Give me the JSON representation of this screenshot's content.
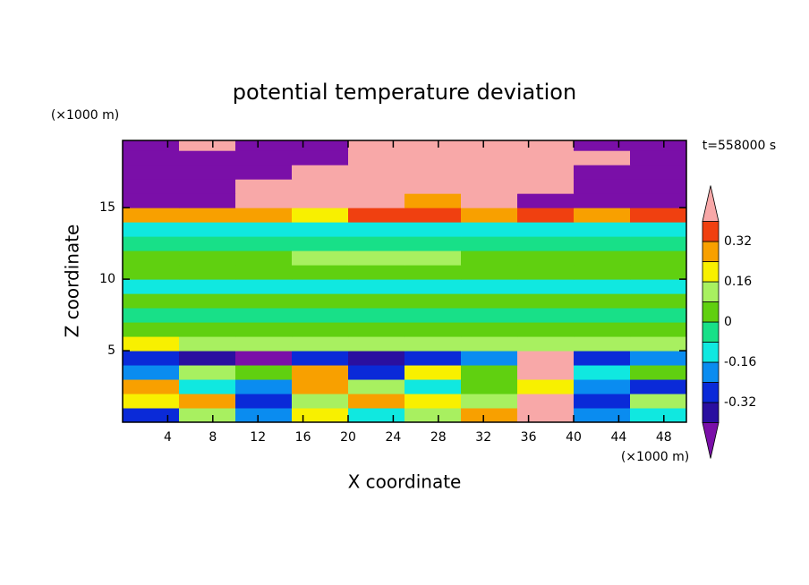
{
  "chart_data": {
    "type": "contour",
    "title": "potential temperature deviation",
    "x_label": "X coordinate",
    "y_label": "Z coordinate",
    "x_unit": "(×1000 m)",
    "y_unit": "(×1000 m)",
    "annotation": "t=558000 s",
    "xlim": [
      0,
      50
    ],
    "ylim": [
      0,
      19.7
    ],
    "xticks": [
      4,
      8,
      12,
      16,
      20,
      24,
      28,
      32,
      36,
      40,
      44,
      48
    ],
    "yticks": [
      5,
      10,
      15
    ],
    "x": [
      2.5,
      7.5,
      12.5,
      17.5,
      22.5,
      27.5,
      32.5,
      37.5,
      42.5,
      47.5
    ],
    "y": [
      0.5,
      1.5,
      2.5,
      3.5,
      4.5,
      5.5,
      6.5,
      7.5,
      8.5,
      9.5,
      10.5,
      11.5,
      12.5,
      13.5,
      14.5,
      15.5,
      16.5,
      17.5,
      18.5,
      19.5
    ],
    "z": [
      [
        -0.3,
        0.1,
        -0.2,
        0.2,
        -0.1,
        0.1,
        0.3,
        0.5,
        -0.2,
        -0.1
      ],
      [
        0.2,
        0.3,
        -0.3,
        0.1,
        0.3,
        0.2,
        0.1,
        0.5,
        -0.3,
        0.1
      ],
      [
        0.3,
        -0.1,
        -0.2,
        0.25,
        0.1,
        -0.1,
        0.0,
        0.2,
        -0.2,
        -0.3
      ],
      [
        -0.2,
        0.1,
        0.0,
        0.3,
        -0.3,
        0.2,
        0.0,
        0.5,
        -0.1,
        0.0
      ],
      [
        -0.3,
        -0.35,
        -0.45,
        -0.3,
        -0.4,
        -0.3,
        -0.2,
        0.5,
        -0.3,
        -0.2
      ],
      [
        0.2,
        0.1,
        0.1,
        0.1,
        0.15,
        0.1,
        0.1,
        0.15,
        0.1,
        0.1
      ],
      [
        0.04,
        0.04,
        0.04,
        0.04,
        0.04,
        0.04,
        0.04,
        0.04,
        0.04,
        0.04
      ],
      [
        -0.04,
        -0.04,
        -0.04,
        -0.04,
        -0.04,
        -0.04,
        -0.04,
        -0.04,
        -0.04,
        -0.04
      ],
      [
        0.04,
        0.04,
        0.04,
        0.04,
        0.04,
        0.04,
        0.04,
        0.04,
        0.04,
        0.04
      ],
      [
        -0.12,
        -0.1,
        -0.1,
        -0.1,
        -0.1,
        -0.1,
        -0.1,
        -0.1,
        -0.1,
        -0.12
      ],
      [
        0.04,
        0.04,
        0.04,
        0.04,
        0.04,
        0.04,
        0.04,
        0.04,
        0.04,
        0.04
      ],
      [
        0.04,
        0.04,
        0.04,
        0.12,
        0.12,
        0.12,
        0.04,
        0.04,
        0.04,
        0.04
      ],
      [
        -0.04,
        -0.04,
        -0.04,
        -0.04,
        -0.04,
        -0.04,
        -0.04,
        -0.04,
        -0.04,
        -0.04
      ],
      [
        -0.12,
        -0.12,
        -0.12,
        -0.12,
        -0.12,
        -0.12,
        -0.12,
        -0.12,
        -0.12,
        -0.12
      ],
      [
        0.3,
        0.3,
        0.3,
        0.2,
        0.36,
        0.36,
        0.3,
        0.36,
        0.3,
        0.36
      ],
      [
        -0.5,
        -0.5,
        0.5,
        0.5,
        0.5,
        0.3,
        0.5,
        -0.5,
        -0.5,
        -0.5
      ],
      [
        -0.5,
        -0.5,
        0.5,
        0.5,
        0.5,
        0.5,
        0.5,
        0.5,
        -0.5,
        -0.5
      ],
      [
        -0.5,
        -0.5,
        -0.5,
        0.5,
        0.5,
        0.5,
        0.5,
        0.5,
        -0.5,
        -0.5
      ],
      [
        -0.5,
        -0.5,
        -0.5,
        -0.5,
        0.5,
        0.5,
        0.5,
        0.5,
        0.5,
        -0.5
      ],
      [
        -0.5,
        0.5,
        -0.5,
        -0.5,
        0.5,
        0.5,
        0.5,
        0.5,
        -0.5,
        -0.5
      ]
    ],
    "levels": [
      -0.4,
      -0.32,
      -0.24,
      -0.16,
      -0.08,
      0,
      0.08,
      0.16,
      0.24,
      0.32,
      0.4
    ],
    "colors": [
      "#7a0fa8",
      "#2a0fa0",
      "#0a2ad8",
      "#0a8cf0",
      "#10e8e0",
      "#18e088",
      "#60d010",
      "#a8f060",
      "#f8f000",
      "#f8a000",
      "#f04010",
      "#f8a8a8"
    ],
    "colorbar_ticks": [
      -0.32,
      -0.16,
      0,
      0.16,
      0.32
    ]
  }
}
